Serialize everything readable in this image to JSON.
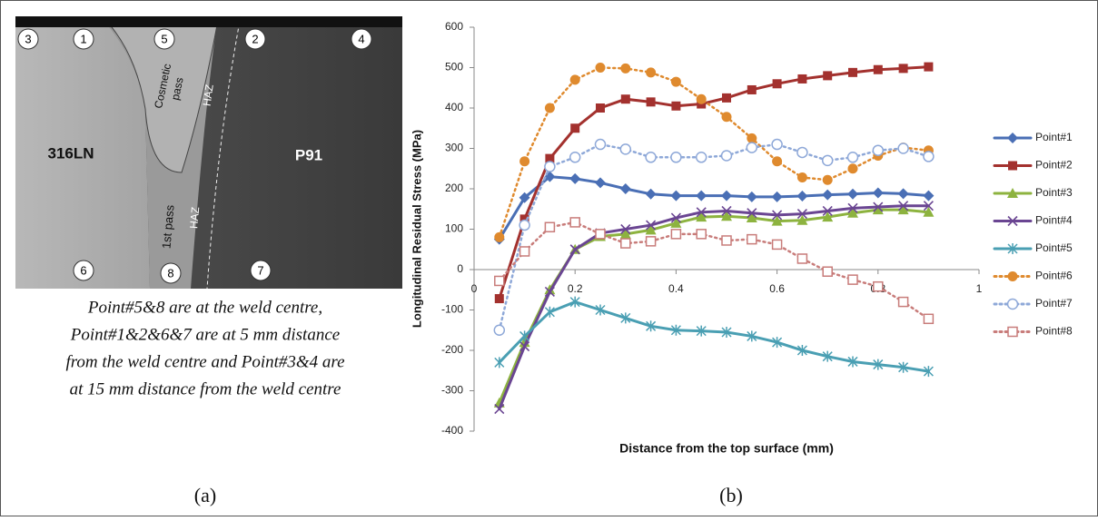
{
  "panel_a": {
    "labels": [
      "3",
      "1",
      "5",
      "2",
      "4",
      "316LN",
      "Cosmetic",
      "pass",
      "HAZ",
      "P91",
      "1st pass",
      "HAZ",
      "6",
      "8",
      "7"
    ],
    "caption": [
      "Point#5&8 are at the weld centre,",
      "Point#1&2&6&7 are at 5 mm distance",
      "from the weld centre and Point#3&4 are",
      "at 15 mm distance from the weld centre"
    ],
    "panel_label": "(a)"
  },
  "panel_b": {
    "panel_label": "(b)"
  },
  "chart_data": {
    "type": "line",
    "x_label": "Distance from the top surface (mm)",
    "y_label": "Longitudinal Residual Stress (MPa)",
    "x": [
      0.05,
      0.1,
      0.15,
      0.2,
      0.25,
      0.3,
      0.35,
      0.4,
      0.45,
      0.5,
      0.55,
      0.6,
      0.65,
      0.7,
      0.75,
      0.8,
      0.85,
      0.9
    ],
    "xlim": [
      0,
      1
    ],
    "xticks": [
      0,
      0.2,
      0.4,
      0.6,
      0.8,
      1
    ],
    "ylim": [
      -400,
      600
    ],
    "yticks": [
      -400,
      -300,
      -200,
      -100,
      0,
      100,
      200,
      300,
      400,
      500,
      600
    ],
    "grid": false,
    "legend": "right",
    "series": [
      {
        "name": "Point#1",
        "color": "#4a6fb5",
        "style": "solid",
        "marker": "diamond",
        "values": [
          75,
          178,
          230,
          225,
          215,
          200,
          187,
          183,
          183,
          183,
          180,
          180,
          182,
          185,
          187,
          190,
          188,
          183
        ]
      },
      {
        "name": "Point#2",
        "color": "#a3312e",
        "style": "solid",
        "marker": "square",
        "values": [
          -72,
          125,
          275,
          350,
          400,
          422,
          415,
          405,
          410,
          425,
          445,
          460,
          472,
          480,
          488,
          495,
          498,
          502
        ]
      },
      {
        "name": "Point#3",
        "color": "#8db33f",
        "style": "solid",
        "marker": "triangle",
        "values": [
          -330,
          -180,
          -50,
          50,
          82,
          88,
          98,
          115,
          130,
          132,
          128,
          120,
          122,
          130,
          140,
          148,
          148,
          142
        ]
      },
      {
        "name": "Point#4",
        "color": "#6a4592",
        "style": "solid",
        "marker": "x",
        "values": [
          -345,
          -190,
          -55,
          50,
          90,
          100,
          110,
          128,
          142,
          145,
          140,
          135,
          138,
          145,
          152,
          155,
          158,
          158
        ]
      },
      {
        "name": "Point#5",
        "color": "#4a9fb3",
        "style": "solid",
        "marker": "star",
        "values": [
          -230,
          -165,
          -105,
          -80,
          -100,
          -120,
          -140,
          -150,
          -152,
          -155,
          -165,
          -180,
          -200,
          -215,
          -228,
          -235,
          -242,
          -252
        ]
      },
      {
        "name": "Point#6",
        "color": "#df8a2e",
        "style": "dotted",
        "marker": "circle",
        "values": [
          80,
          268,
          400,
          470,
          500,
          498,
          488,
          465,
          422,
          378,
          325,
          268,
          228,
          222,
          250,
          282,
          302,
          295
        ]
      },
      {
        "name": "Point#7",
        "color": "#8ea8d8",
        "style": "dotted",
        "marker": "open-circle",
        "values": [
          -150,
          110,
          255,
          278,
          310,
          298,
          278,
          278,
          278,
          282,
          302,
          310,
          290,
          270,
          278,
          295,
          300,
          280
        ]
      },
      {
        "name": "Point#8",
        "color": "#c87c7a",
        "style": "dotted",
        "marker": "open-square",
        "values": [
          -28,
          45,
          105,
          117,
          88,
          65,
          70,
          88,
          88,
          72,
          75,
          62,
          27,
          -5,
          -25,
          -42,
          -80,
          -122
        ]
      }
    ]
  }
}
